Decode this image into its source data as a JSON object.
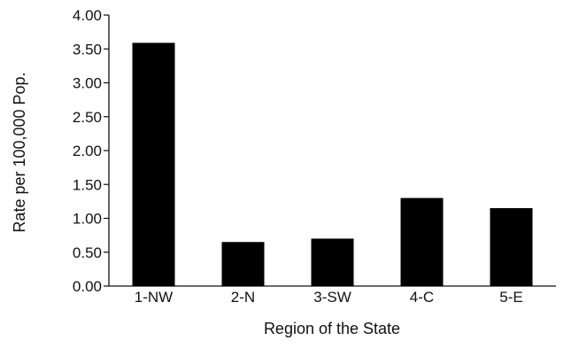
{
  "chart_data": {
    "type": "bar",
    "title": "",
    "xlabel": "Region of the State",
    "ylabel": "Rate per 100,000 Pop.",
    "categories": [
      "1-NW",
      "2-N",
      "3-SW",
      "4-C",
      "5-E"
    ],
    "values": [
      3.59,
      0.65,
      0.7,
      1.3,
      1.15
    ],
    "ylim": [
      0,
      4
    ],
    "yticks": [
      "0.00",
      "0.50",
      "1.00",
      "1.50",
      "2.00",
      "2.50",
      "3.00",
      "3.50",
      "4.00"
    ],
    "grid": false,
    "legend": "none",
    "bar_color": "#000000"
  }
}
